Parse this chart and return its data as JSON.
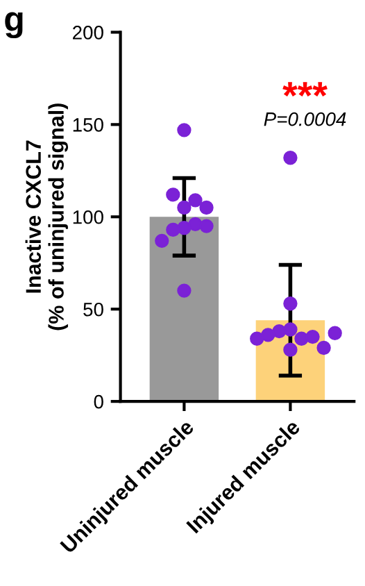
{
  "chart_data": [
    {
      "type": "bar",
      "title": "g",
      "ylabel": "Inactive CXCL7\n(% of uninjured signal)",
      "categories": [
        "Uninjured muscle",
        "Injured muscle"
      ],
      "values": [
        100,
        44
      ],
      "colors": [
        "#999999",
        "#fdd27a"
      ],
      "errors": [
        21,
        30
      ],
      "series": [
        {
          "type": "scatter",
          "color": "#7b22d6",
          "x": [
            "Uninjured muscle",
            "Uninjured muscle",
            "Uninjured muscle",
            "Uninjured muscle",
            "Uninjured muscle",
            "Uninjured muscle",
            "Uninjured muscle",
            "Uninjured muscle",
            "Uninjured muscle",
            "Uninjured muscle",
            "Uninjured muscle",
            "Injured muscle",
            "Injured muscle",
            "Injured muscle",
            "Injured muscle",
            "Injured muscle",
            "Injured muscle",
            "Injured muscle",
            "Injured muscle",
            "Injured muscle",
            "Injured muscle",
            "Injured muscle"
          ],
          "values": [
            147,
            105,
            109,
            112,
            105,
            94,
            96,
            93,
            95,
            87,
            60,
            132,
            53,
            39,
            34,
            38,
            35,
            36,
            28,
            29,
            34,
            37
          ]
        }
      ],
      "annotations": [
        "***",
        "P=0.0004"
      ],
      "ylim": [
        0,
        200
      ],
      "yticks": [
        0,
        50,
        100,
        150,
        200
      ],
      "grid": false,
      "legend": false
    }
  ]
}
